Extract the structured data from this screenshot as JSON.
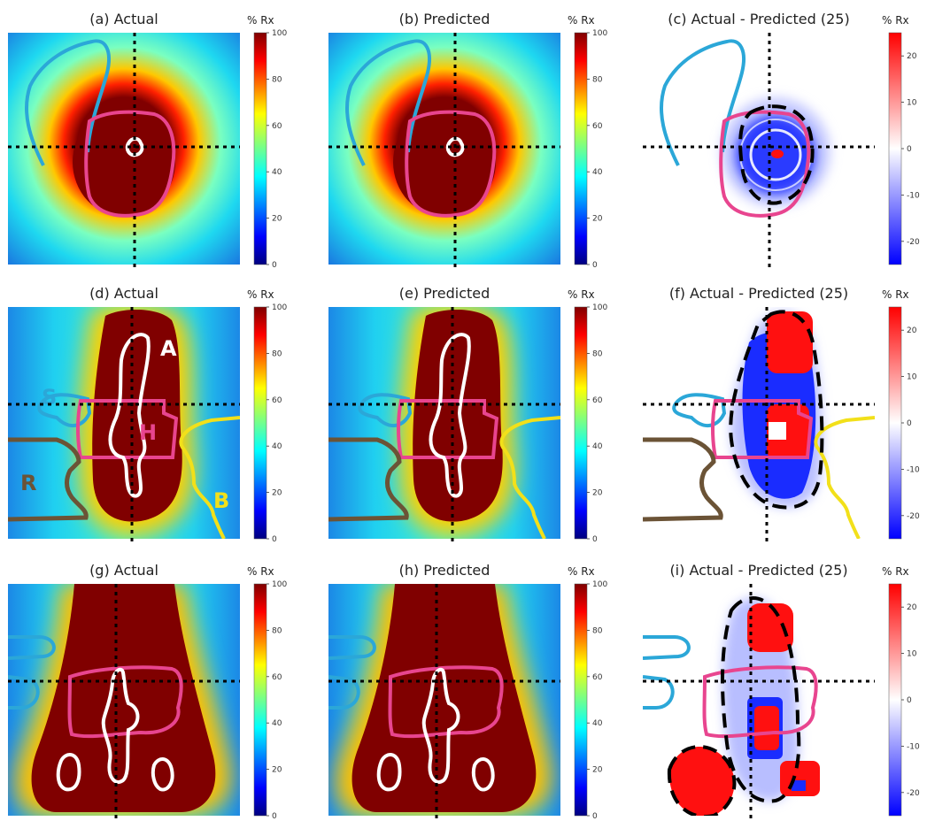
{
  "colorbar_label": "% Rx",
  "dose_ticks": [
    "100",
    "80",
    "60",
    "40",
    "20",
    "0"
  ],
  "diff_ticks": [
    "20",
    "10",
    "0",
    "-10",
    "-20"
  ],
  "panels": [
    {
      "title": "(a) Actual",
      "kind": "dose",
      "view": "axial"
    },
    {
      "title": "(b) Predicted",
      "kind": "dose",
      "view": "axial"
    },
    {
      "title": "(c) Actual - Predicted (25)",
      "kind": "diff",
      "view": "axial"
    },
    {
      "title": "(d) Actual",
      "kind": "dose",
      "view": "sagittal",
      "labels": true
    },
    {
      "title": "(e) Predicted",
      "kind": "dose",
      "view": "sagittal"
    },
    {
      "title": "(f) Actual - Predicted (25)",
      "kind": "diff",
      "view": "sagittal"
    },
    {
      "title": "(g) Actual",
      "kind": "dose",
      "view": "coronal"
    },
    {
      "title": "(h) Predicted",
      "kind": "dose",
      "view": "coronal"
    },
    {
      "title": "(i) Actual - Predicted (25)",
      "kind": "diff",
      "view": "coronal"
    }
  ],
  "structure_labels": {
    "A": "A",
    "S": "S",
    "H": "H",
    "R": "R",
    "B": "B"
  },
  "colors": {
    "bladder": "#e8458f",
    "rectum_contour": "#2ba7d8",
    "bowel": "#f2e01a",
    "femur": "#6b5336",
    "applicator": "#ffffff",
    "dose_high": "#800000",
    "diff_pos": "#ff1010",
    "diff_neg": "#1a2cff"
  }
}
